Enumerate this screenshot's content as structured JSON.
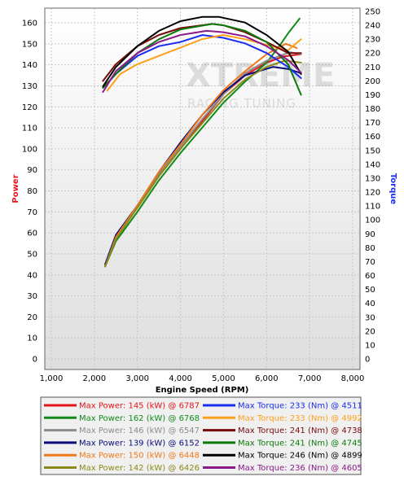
{
  "chart_data": {
    "type": "line",
    "title": "",
    "xlabel": "Engine Speed (RPM)",
    "ylabel_left": "Power",
    "ylabel_right": "Torque",
    "xlim": [
      1000,
      8000
    ],
    "ylim_left": [
      0,
      165
    ],
    "ylim_right": [
      0,
      250
    ],
    "x_ticks": [
      "1,000",
      "2,000",
      "3,000",
      "4,000",
      "5,000",
      "6,000",
      "7,000",
      "8,000"
    ],
    "y_left_ticks": [
      0,
      10,
      20,
      30,
      40,
      50,
      60,
      70,
      80,
      90,
      100,
      110,
      120,
      130,
      140,
      150,
      160
    ],
    "y_right_ticks": [
      0,
      10,
      20,
      30,
      40,
      50,
      60,
      70,
      80,
      90,
      100,
      110,
      120,
      130,
      140,
      150,
      160,
      170,
      180,
      190,
      200,
      210,
      220,
      230,
      240,
      250
    ],
    "grid": true,
    "watermark": {
      "line1": "XTREME",
      "line2": "RACING TUNING"
    },
    "power_series": [
      {
        "color": "#e8141b",
        "legend": "Max Power: 145 (kW) @ 6787",
        "x": [
          2250,
          2500,
          3000,
          3500,
          4000,
          4500,
          5000,
          5500,
          6000,
          6400,
          6787
        ],
        "y": [
          44,
          58,
          72,
          87,
          100,
          113,
          126,
          135,
          141,
          144,
          145
        ]
      },
      {
        "color": "#118a1a",
        "legend": "Max Power: 162 (kW) @ 6768",
        "x": [
          2250,
          2500,
          3000,
          3500,
          4000,
          4500,
          5000,
          5500,
          6000,
          6300,
          6500,
          6768
        ],
        "y": [
          44,
          56,
          70,
          85,
          98,
          110,
          122,
          132,
          141,
          149,
          155,
          162
        ]
      },
      {
        "color": "#8c8c8c",
        "legend": "Max Power: 146 (kW) @ 6547",
        "x": [
          2250,
          2500,
          3000,
          3500,
          4000,
          4500,
          5000,
          5500,
          6000,
          6547,
          6800
        ],
        "y": [
          45,
          59,
          73,
          88,
          101,
          114,
          126,
          136,
          142,
          146,
          145
        ]
      },
      {
        "color": "#0b0b7a",
        "legend": "Max Power: 139 (kW) @ 6152",
        "x": [
          2250,
          2500,
          3000,
          3500,
          4000,
          4500,
          5000,
          5500,
          6152,
          6500,
          6800
        ],
        "y": [
          45,
          59,
          73,
          89,
          103,
          116,
          127,
          135,
          139,
          138,
          136
        ]
      },
      {
        "color": "#f07a1a",
        "legend": "Max Power: 150 (kW) @ 6448",
        "x": [
          2250,
          2500,
          3000,
          3500,
          4000,
          4500,
          5000,
          5500,
          6000,
          6448,
          6700
        ],
        "y": [
          44,
          58,
          73,
          89,
          102,
          116,
          128,
          137,
          145,
          150,
          148
        ]
      },
      {
        "color": "#8a8a1a",
        "legend": "Max Power: 142 (kW) @ 6426",
        "x": [
          2250,
          2500,
          3000,
          3500,
          4000,
          4500,
          5000,
          5500,
          6000,
          6426,
          6800
        ],
        "y": [
          44,
          57,
          72,
          87,
          100,
          112,
          124,
          133,
          139,
          142,
          141
        ]
      }
    ],
    "torque_series": [
      {
        "color": "#1a2ef0",
        "legend": "Max Torque: 233 (Nm) @ 4511",
        "x": [
          2200,
          2500,
          3000,
          3500,
          4000,
          4511,
          5000,
          5500,
          6000,
          6500,
          6800
        ],
        "y": [
          195,
          205,
          218,
          225,
          228,
          233,
          231,
          227,
          220,
          210,
          202
        ]
      },
      {
        "color": "#ffa01a",
        "legend": "Max Torque: 233 (Nm) @ 4992",
        "x": [
          2300,
          2600,
          3000,
          3500,
          4000,
          4500,
          4992,
          5500,
          6000,
          6500,
          6800
        ],
        "y": [
          193,
          205,
          212,
          218,
          224,
          230,
          233,
          230,
          226,
          222,
          230
        ]
      },
      {
        "color": "#7a0a0a",
        "legend": "Max Torque: 241 (Nm) @ 4738",
        "x": [
          2200,
          2500,
          3000,
          3500,
          4000,
          4738,
          5000,
          5500,
          6000,
          6500,
          6800
        ],
        "y": [
          200,
          212,
          225,
          233,
          238,
          241,
          240,
          235,
          228,
          220,
          220
        ]
      },
      {
        "color": "#0a7a0a",
        "legend": "Max Torque: 241 (Nm) @ 4745",
        "x": [
          2200,
          2500,
          3000,
          3500,
          4000,
          4745,
          5000,
          5500,
          6000,
          6500,
          6800
        ],
        "y": [
          195,
          205,
          220,
          230,
          237,
          241,
          240,
          236,
          228,
          212,
          190
        ]
      },
      {
        "color": "#000000",
        "legend": "Max Torque: 246 (Nm) @ 4899",
        "x": [
          2200,
          2500,
          3000,
          3500,
          4000,
          4500,
          4899,
          5500,
          6000,
          6500,
          6800
        ],
        "y": [
          196,
          210,
          225,
          236,
          243,
          246,
          246,
          242,
          233,
          221,
          205
        ]
      },
      {
        "color": "#8a1a8a",
        "legend": "Max Torque: 236 (Nm) @ 4605",
        "x": [
          2200,
          2500,
          3000,
          3500,
          4000,
          4605,
          5000,
          5500,
          6000,
          6500,
          6800
        ],
        "y": [
          192,
          207,
          220,
          228,
          233,
          236,
          235,
          232,
          225,
          215,
          206
        ]
      }
    ]
  }
}
